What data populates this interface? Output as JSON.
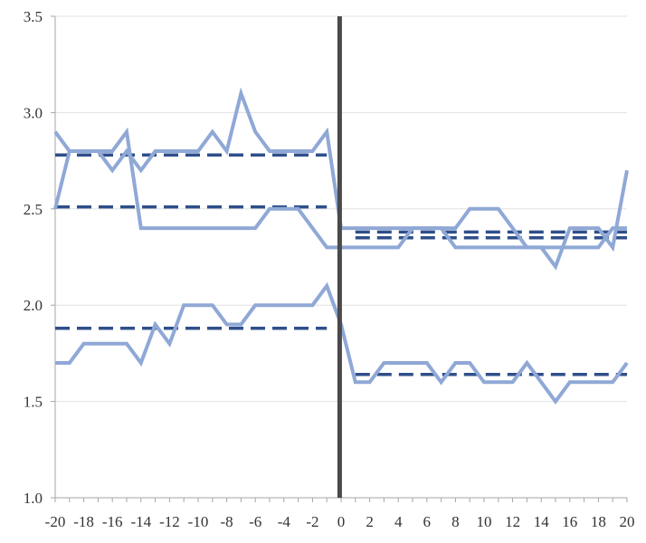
{
  "chart_data": {
    "type": "line",
    "title": "",
    "xlabel": "",
    "ylabel": "",
    "xlim": [
      -20,
      20
    ],
    "ylim": [
      1.0,
      3.5
    ],
    "x_ticks": [
      "-20",
      "-18",
      "-16",
      "-14",
      "-12",
      "-10",
      "-8",
      "-6",
      "-4",
      "-2",
      "0",
      "2",
      "4",
      "6",
      "8",
      "10",
      "12",
      "14",
      "16",
      "18",
      "20"
    ],
    "y_ticks": [
      "1.0",
      "1.5",
      "2.0",
      "2.5",
      "3.0",
      "3.5"
    ],
    "grid": "horizontal",
    "x": [
      -20,
      -19,
      -18,
      -17,
      -16,
      -15,
      -14,
      -13,
      -12,
      -11,
      -10,
      -9,
      -8,
      -7,
      -6,
      -5,
      -4,
      -3,
      -2,
      -1,
      0,
      1,
      2,
      3,
      4,
      5,
      6,
      7,
      8,
      9,
      10,
      11,
      12,
      13,
      14,
      15,
      16,
      17,
      18,
      19,
      20
    ],
    "series": [
      {
        "values": [
          2.9,
          2.8,
          2.8,
          2.8,
          2.7,
          2.8,
          2.7,
          2.8,
          2.8,
          2.8,
          2.8,
          2.9,
          2.8,
          3.1,
          2.9,
          2.8,
          2.8,
          2.8,
          2.8,
          2.9,
          2.4,
          2.4,
          2.4,
          2.4,
          2.4,
          2.4,
          2.4,
          2.4,
          2.4,
          2.5,
          2.5,
          2.5,
          2.4,
          2.3,
          2.3,
          2.2,
          2.4,
          2.4,
          2.4,
          2.3,
          2.7
        ]
      },
      {
        "values": [
          2.5,
          2.8,
          2.8,
          2.8,
          2.8,
          2.9,
          2.4,
          2.4,
          2.4,
          2.4,
          2.4,
          2.4,
          2.4,
          2.4,
          2.4,
          2.5,
          2.5,
          2.5,
          2.4,
          2.3,
          2.3,
          2.3,
          2.3,
          2.3,
          2.3,
          2.4,
          2.4,
          2.4,
          2.3,
          2.3,
          2.3,
          2.3,
          2.3,
          2.3,
          2.3,
          2.3,
          2.3,
          2.3,
          2.3,
          2.4,
          2.4
        ]
      },
      {
        "values": [
          1.7,
          1.7,
          1.8,
          1.8,
          1.8,
          1.8,
          1.7,
          1.9,
          1.8,
          2.0,
          2.0,
          2.0,
          1.9,
          1.9,
          2.0,
          2.0,
          2.0,
          2.0,
          2.0,
          2.1,
          1.9,
          1.6,
          1.6,
          1.7,
          1.7,
          1.7,
          1.7,
          1.6,
          1.7,
          1.7,
          1.6,
          1.6,
          1.6,
          1.7,
          1.6,
          1.5,
          1.6,
          1.6,
          1.6,
          1.6,
          1.7
        ]
      }
    ],
    "mean_lines": [
      {
        "value": 2.78,
        "x_range": [
          -20,
          -1
        ]
      },
      {
        "value": 2.51,
        "x_range": [
          -20,
          -1
        ]
      },
      {
        "value": 1.88,
        "x_range": [
          -20,
          -1
        ]
      },
      {
        "value": 2.38,
        "x_range": [
          1,
          20
        ]
      },
      {
        "value": 2.35,
        "x_range": [
          1,
          20
        ]
      },
      {
        "value": 1.64,
        "x_range": [
          1,
          20
        ]
      }
    ],
    "vertical_marker": {
      "x": -0.1
    },
    "colors": {
      "series": "#8fa8d6",
      "mean_lines": "#2f4f8a",
      "marker": "#4a4a4a",
      "grid": "#e0e0e0",
      "axis": "#a6a6a6"
    }
  }
}
